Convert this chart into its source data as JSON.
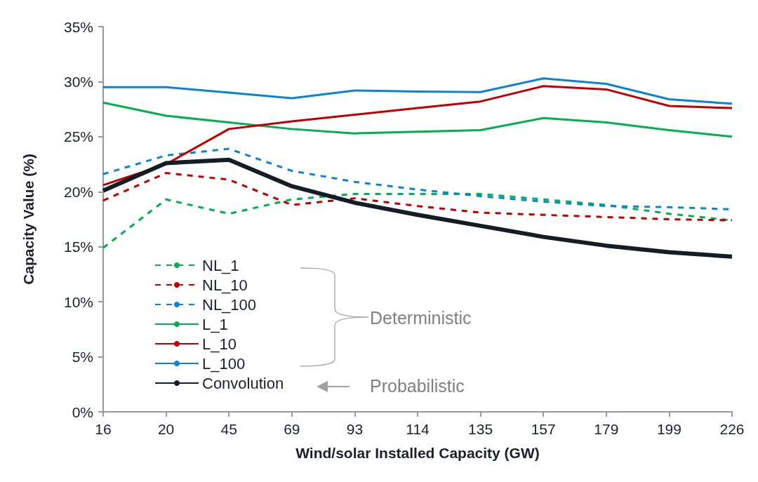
{
  "chart_data": {
    "type": "line",
    "xlabel": "Wind/solar Installed Capacity (GW)",
    "ylabel": "Capacity Value (%)",
    "categories": [
      "16",
      "20",
      "45",
      "69",
      "93",
      "114",
      "135",
      "157",
      "179",
      "199",
      "226"
    ],
    "series": [
      {
        "name": "NL_1",
        "color": "#00b050",
        "line_style": "dashed",
        "values": [
          14.9,
          19.3,
          18.0,
          19.3,
          19.8,
          19.8,
          19.8,
          19.3,
          18.8,
          18.0,
          17.4
        ]
      },
      {
        "name": "NL_10",
        "color": "#c00000",
        "line_style": "dashed",
        "values": [
          19.2,
          21.7,
          21.1,
          18.8,
          19.4,
          18.7,
          18.1,
          17.9,
          17.7,
          17.5,
          17.4
        ]
      },
      {
        "name": "NL_100",
        "color": "#0a84d0",
        "line_style": "dashed",
        "values": [
          21.6,
          23.3,
          23.9,
          21.9,
          20.9,
          20.2,
          19.6,
          19.1,
          18.7,
          18.6,
          18.4
        ]
      },
      {
        "name": "L_1",
        "color": "#00b050",
        "line_style": "solid",
        "values": [
          28.1,
          26.9,
          26.3,
          25.7,
          25.3,
          25.45,
          25.6,
          26.7,
          26.3,
          25.6,
          25.0
        ]
      },
      {
        "name": "L_10",
        "color": "#c00000",
        "line_style": "solid",
        "values": [
          20.6,
          22.5,
          25.7,
          26.4,
          27.0,
          27.6,
          28.2,
          29.6,
          29.3,
          27.8,
          27.6
        ]
      },
      {
        "name": "L_100",
        "color": "#0a84d0",
        "line_style": "solid",
        "values": [
          29.5,
          29.5,
          29.0,
          28.5,
          29.2,
          29.1,
          29.05,
          30.3,
          29.8,
          28.4,
          28.0
        ]
      },
      {
        "name": "Convolution",
        "color": "#141c26",
        "line_style": "solid",
        "values": [
          20.1,
          22.6,
          22.9,
          20.5,
          19.0,
          17.9,
          16.9,
          15.9,
          15.1,
          14.5,
          14.1
        ]
      }
    ],
    "ylim": [
      0,
      35
    ],
    "yticks": [
      {
        "value": 0,
        "label": "0%"
      },
      {
        "value": 5,
        "label": "5%"
      },
      {
        "value": 10,
        "label": "10%"
      },
      {
        "value": 15,
        "label": "15%"
      },
      {
        "value": 20,
        "label": "20%"
      },
      {
        "value": 25,
        "label": "25%"
      },
      {
        "value": 30,
        "label": "30%"
      },
      {
        "value": 35,
        "label": "35%"
      }
    ],
    "annotations": [
      "Deterministic",
      "Probabilistic"
    ],
    "legend": "bottom left",
    "grid": false,
    "marker": "none"
  }
}
